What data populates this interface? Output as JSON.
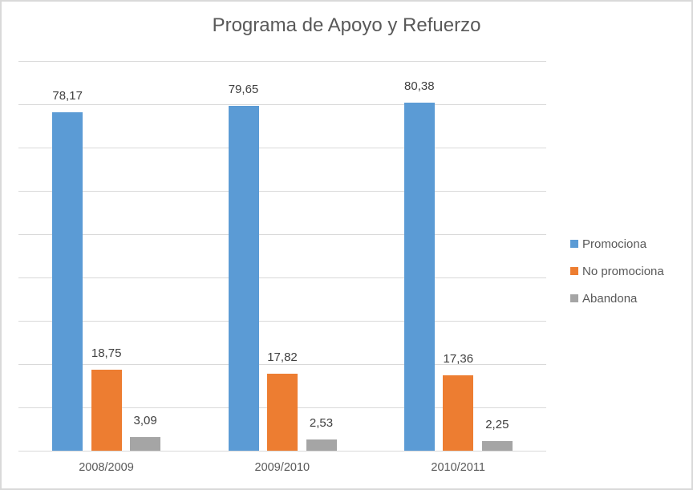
{
  "chart_data": {
    "type": "bar",
    "title": "Programa de Apoyo y Refuerzo",
    "xlabel": "",
    "ylabel": "",
    "ylim": [
      0,
      90
    ],
    "grid": true,
    "gridline_step": 10,
    "legend_position": "right",
    "categories": [
      "2008/2009",
      "2009/2010",
      "2010/2011"
    ],
    "series": [
      {
        "name": "Promociona",
        "color": "#5b9bd5",
        "values": [
          78.17,
          79.65,
          80.38
        ],
        "labels": [
          "78,17",
          "79,65",
          "80,38"
        ]
      },
      {
        "name": "No promociona",
        "color": "#ed7d31",
        "values": [
          18.75,
          17.82,
          17.36
        ],
        "labels": [
          "18,75",
          "17,82",
          "17,36"
        ]
      },
      {
        "name": "Abandona",
        "color": "#a5a5a5",
        "values": [
          3.09,
          2.53,
          2.25
        ],
        "labels": [
          "3,09",
          "2,53",
          "2,25"
        ]
      }
    ]
  }
}
